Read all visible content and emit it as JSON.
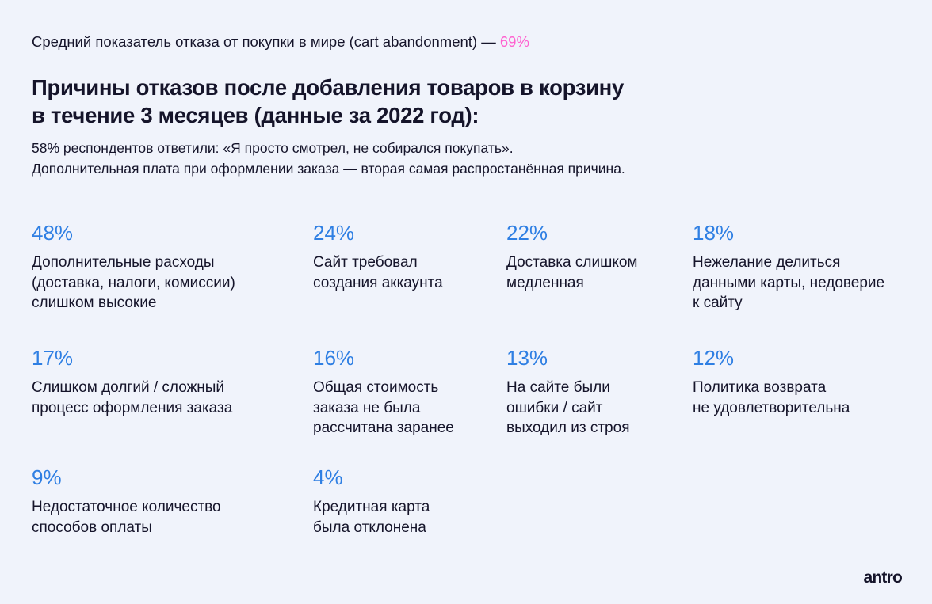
{
  "intro": {
    "text": "Средний показатель отказа от покупки в мире (cart abandonment) —",
    "highlight": "69%"
  },
  "title": {
    "line1": "Причины отказов после добавления товаров в корзину",
    "line2": "в течение 3 месяцев (данные за 2022 год):"
  },
  "subtitle": {
    "line1": "58% респондентов ответили: «Я просто смотрел, не собирался покупать».",
    "line2": "Дополнительная плата при оформлении заказа — вторая самая распростанённая причина."
  },
  "reasons": [
    {
      "percent": "48%",
      "text": "Дополнительные расходы\n(доставка, налоги, комиссии)\nслишком высокие"
    },
    {
      "percent": "24%",
      "text": "Сайт требовал\nсоздания аккаунта"
    },
    {
      "percent": "22%",
      "text": "Доставка слишком\nмедленная"
    },
    {
      "percent": "18%",
      "text": "Нежелание делиться\nданными карты, недоверие\nк сайту"
    },
    {
      "percent": "17%",
      "text": "Слишком долгий / сложный\nпроцесс оформления заказа"
    },
    {
      "percent": "16%",
      "text": "Общая стоимость\nзаказа не была\nрассчитана заранее"
    },
    {
      "percent": "13%",
      "text": "На сайте были\nошибки / сайт\nвыходил из строя"
    },
    {
      "percent": "12%",
      "text": "Политика возврата\nне удовлетворительна"
    },
    {
      "percent": "9%",
      "text": "Недостаточное количество\nспособов оплаты"
    },
    {
      "percent": "4%",
      "text": "Кредитная карта\nбыла отклонена"
    }
  ],
  "logo": "antro",
  "colors": {
    "accent_blue": "#2f7fe3",
    "accent_pink": "#ff5fcf",
    "background": "#f0f3fb"
  }
}
